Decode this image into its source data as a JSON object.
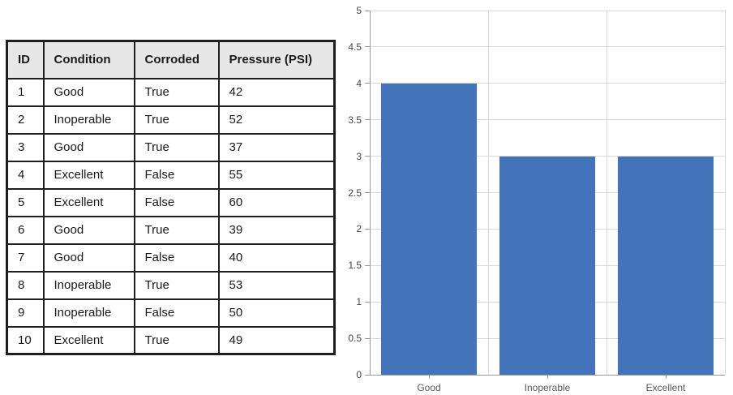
{
  "table": {
    "columns": [
      "ID",
      "Condition",
      "Corroded",
      "Pressure (PSI)"
    ],
    "rows": [
      [
        "1",
        "Good",
        "True",
        "42"
      ],
      [
        "2",
        "Inoperable",
        "True",
        "52"
      ],
      [
        "3",
        "Good",
        "True",
        "37"
      ],
      [
        "4",
        "Excellent",
        "False",
        "55"
      ],
      [
        "5",
        "Excellent",
        "False",
        "60"
      ],
      [
        "6",
        "Good",
        "True",
        "39"
      ],
      [
        "7",
        "Good",
        "False",
        "40"
      ],
      [
        "8",
        "Inoperable",
        "True",
        "53"
      ],
      [
        "9",
        "Inoperable",
        "False",
        "50"
      ],
      [
        "10",
        "Excellent",
        "True",
        "49"
      ]
    ],
    "header_bg": "#e7e7e7",
    "border_color": "#1f1f1f"
  },
  "chart_data": {
    "type": "bar",
    "categories": [
      "Good",
      "Inoperable",
      "Excellent"
    ],
    "values": [
      4,
      3,
      3
    ],
    "title": "",
    "xlabel": "",
    "ylabel": "",
    "ylim": [
      0,
      5
    ],
    "ytick_step": 0.5,
    "ytick_labels": [
      "0",
      "0.5",
      "1",
      "1.5",
      "2",
      "2.5",
      "3",
      "3.5",
      "4",
      "4.5",
      "5"
    ],
    "grid": true,
    "legend": false,
    "bar_color": "#4374b9",
    "gridline_color": "#d9d9d9",
    "axis_color": "#9a9a9a",
    "ytick_label_color": "#474747",
    "xtick_label_color": "#595959"
  }
}
